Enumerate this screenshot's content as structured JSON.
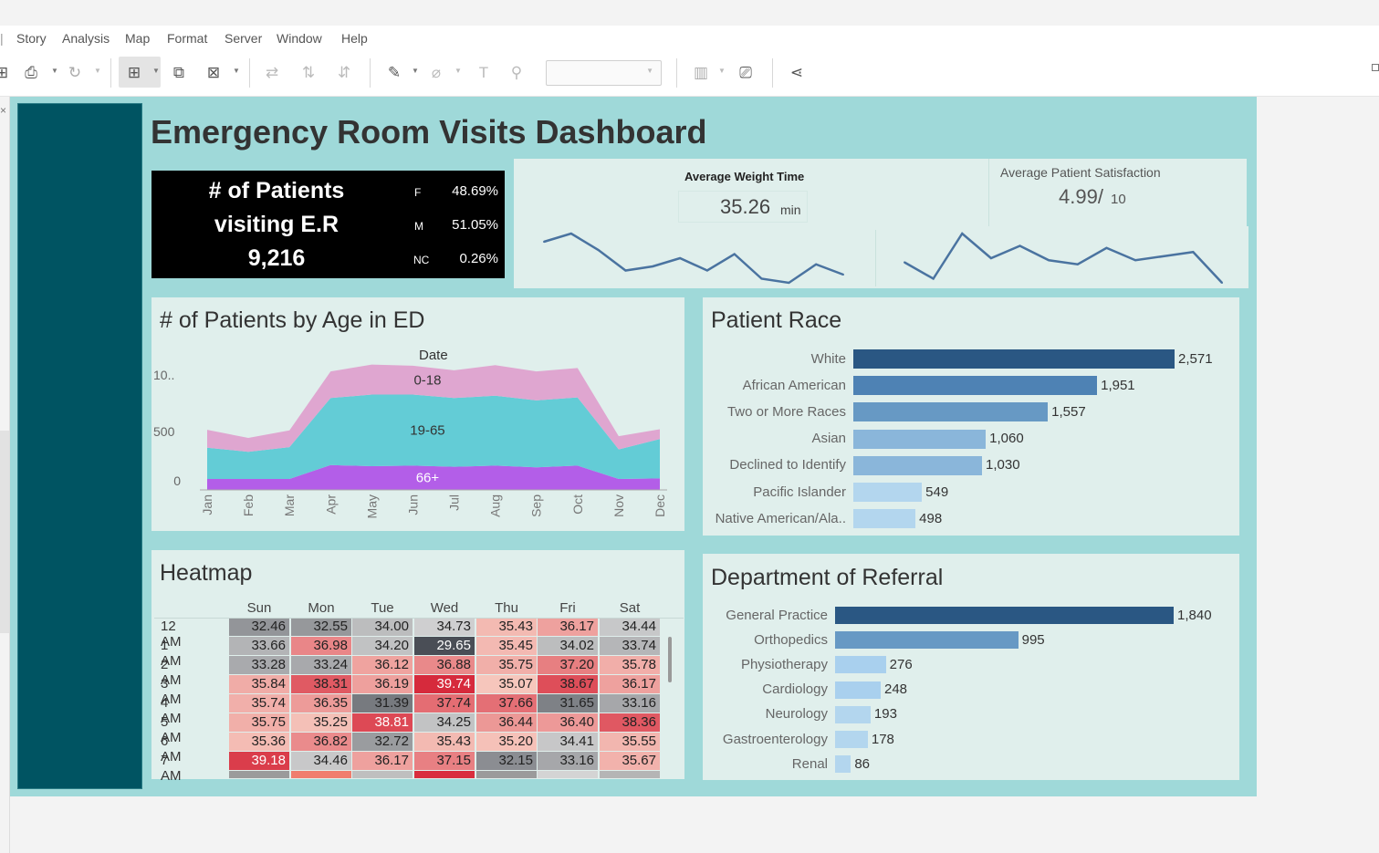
{
  "menu": [
    "Story",
    "Analysis",
    "Map",
    "Format",
    "Server",
    "Window",
    "Help"
  ],
  "dashboard": {
    "title": "Emergency Room Visits Dashboard",
    "kpi": {
      "line1": "# of Patients",
      "line2": "visiting E.R",
      "count": "9,216",
      "genders": [
        {
          "code": "F",
          "pct": "48.69%"
        },
        {
          "code": "M",
          "pct": "51.05%"
        },
        {
          "code": "NC",
          "pct": "0.26%"
        }
      ]
    },
    "wait_time": {
      "label": "Average Weight Time",
      "value": "35.26",
      "unit": "min"
    },
    "satisfaction": {
      "label": "Average Patient Satisfaction",
      "value": "4.99/",
      "denom": "10"
    },
    "age_panel": {
      "title": "# of Patients by Age in ED",
      "header": "Date",
      "y_ticks": [
        "10..",
        "500",
        "0"
      ]
    },
    "race_panel": {
      "title": "Patient Race"
    },
    "heatmap": {
      "title": "Heatmap",
      "days": [
        "Sun",
        "Mon",
        "Tue",
        "Wed",
        "Thu",
        "Fri",
        "Sat"
      ],
      "rows": [
        {
          "hour": "12 AM",
          "values": [
            "32.46",
            "32.55",
            "34.00",
            "34.73",
            "35.43",
            "36.17",
            "34.44"
          ]
        },
        {
          "hour": "1 AM",
          "values": [
            "33.66",
            "36.98",
            "34.20",
            "29.65",
            "35.45",
            "34.02",
            "33.74"
          ]
        },
        {
          "hour": "2 AM",
          "values": [
            "33.28",
            "33.24",
            "36.12",
            "36.88",
            "35.75",
            "37.20",
            "35.78"
          ]
        },
        {
          "hour": "3 AM",
          "values": [
            "35.84",
            "38.31",
            "36.19",
            "39.74",
            "35.07",
            "38.67",
            "36.17"
          ]
        },
        {
          "hour": "4 AM",
          "values": [
            "35.74",
            "36.35",
            "31.39",
            "37.74",
            "37.66",
            "31.65",
            "33.16"
          ]
        },
        {
          "hour": "5 AM",
          "values": [
            "35.75",
            "35.25",
            "38.81",
            "34.25",
            "36.44",
            "36.40",
            "38.36"
          ]
        },
        {
          "hour": "6 AM",
          "values": [
            "35.36",
            "36.82",
            "32.72",
            "35.43",
            "35.20",
            "34.41",
            "35.55"
          ]
        },
        {
          "hour": "7 AM",
          "values": [
            "39.18",
            "34.46",
            "36.17",
            "37.15",
            "32.15",
            "33.16",
            "35.67"
          ]
        }
      ]
    },
    "referral_panel": {
      "title": "Department of Referral"
    }
  },
  "chart_data": [
    {
      "type": "area",
      "title": "# of Patients by Age in ED",
      "xlabel": "Date",
      "categories": [
        "Jan",
        "Feb",
        "Mar",
        "Apr",
        "May",
        "Jun",
        "Jul",
        "Aug",
        "Sep",
        "Oct",
        "Nov",
        "Dec"
      ],
      "ylim": [
        0,
        1200
      ],
      "stacked": true,
      "series": [
        {
          "name": "66+",
          "values": [
            95,
            95,
            95,
            215,
            205,
            210,
            200,
            210,
            195,
            210,
            95,
            100
          ],
          "color": "#b35ee8"
        },
        {
          "name": "19-65",
          "values": [
            270,
            235,
            275,
            580,
            620,
            615,
            595,
            605,
            580,
            590,
            255,
            340
          ],
          "color": "#63ccd6"
        },
        {
          "name": "0-18",
          "values": [
            155,
            120,
            145,
            230,
            260,
            250,
            240,
            265,
            250,
            255,
            115,
            85
          ],
          "color": "#dfa6d0"
        }
      ]
    },
    {
      "type": "line",
      "values": [
        33,
        37,
        29,
        19,
        21,
        25,
        19,
        27,
        15,
        13,
        22,
        17
      ],
      "color": "#4a73a0"
    },
    {
      "type": "line",
      "values": [
        26,
        18,
        40,
        28,
        34,
        27,
        25,
        33,
        27,
        29,
        31,
        16
      ],
      "color": "#4a73a0"
    },
    {
      "type": "bar",
      "title": "Patient Race",
      "categories": [
        "White",
        "African American",
        "Two or More Races",
        "Asian",
        "Declined to Identify",
        "Pacific Islander",
        "Native American/Ala.."
      ],
      "values": [
        2571,
        1951,
        1557,
        1060,
        1030,
        549,
        498
      ],
      "labels": [
        "2,571",
        "1,951",
        "1,557",
        "1,060",
        "1,030",
        "549",
        "498"
      ],
      "colors": [
        "#2a5783",
        "#4e82b4",
        "#6799c4",
        "#8ab6da",
        "#8ab6da",
        "#b3d6ee",
        "#b3d6ee"
      ]
    },
    {
      "type": "bar",
      "title": "Department of Referral",
      "categories": [
        "General Practice",
        "Orthopedics",
        "Physiotherapy",
        "Cardiology",
        "Neurology",
        "Gastroenterology",
        "Renal"
      ],
      "values": [
        1840,
        995,
        276,
        248,
        193,
        178,
        86
      ],
      "labels": [
        "1,840",
        "995",
        "276",
        "248",
        "193",
        "178",
        "86"
      ],
      "colors": [
        "#2a5783",
        "#6799c4",
        "#a9d0ee",
        "#a9d0ee",
        "#b3d6ee",
        "#b3d6ee",
        "#b3d6ee"
      ]
    }
  ]
}
